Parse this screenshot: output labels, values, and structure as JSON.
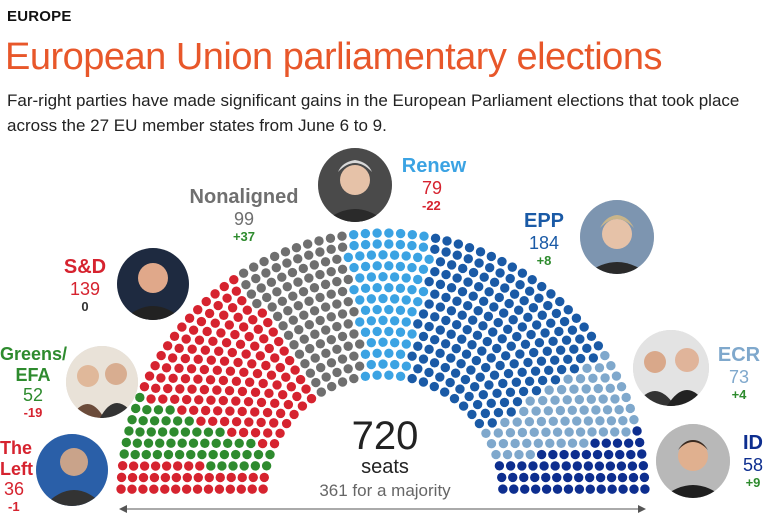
{
  "header": {
    "kicker": "EUROPE",
    "title": "European Union parliamentary elections",
    "subtitle": "Far-right parties have made significant gains in the European Parliament elections that took place across the 27 EU member states from June 6 to 9."
  },
  "center": {
    "total": "720",
    "total_label": "seats",
    "majority": "361 for a majority"
  },
  "parties": [
    {
      "name": "The Left",
      "seats": "36",
      "change": "-1",
      "color": "#d6232f",
      "icon": "person-photo-icon"
    },
    {
      "name": "Greens/ EFA",
      "seats": "52",
      "change": "-19",
      "color": "#2e8b2e",
      "icon": "person-photo-icon"
    },
    {
      "name": "S&D",
      "seats": "139",
      "change": "0",
      "color": "#d6232f",
      "icon": "person-photo-icon"
    },
    {
      "name": "Nonaligned",
      "seats": "99",
      "change": "+37",
      "color": "#6f6f6f",
      "icon": "person-photo-icon"
    },
    {
      "name": "Renew",
      "seats": "79",
      "change": "-22",
      "color": "#3ba3e3",
      "icon": "person-photo-icon"
    },
    {
      "name": "EPP",
      "seats": "184",
      "change": "+8",
      "color": "#1a5aa6",
      "icon": "person-photo-icon"
    },
    {
      "name": "ECR",
      "seats": "73",
      "change": "+4",
      "color": "#7fa8cc",
      "icon": "person-photo-icon"
    },
    {
      "name": "ID",
      "seats": "58",
      "change": "+9",
      "color": "#0d2e8f",
      "icon": "person-photo-icon"
    }
  ],
  "colors": {
    "title": "#e8572a",
    "increase": "#2e8b2e",
    "decrease": "#d6232f",
    "neutral": "#333333"
  },
  "chart_data": {
    "type": "hemicycle",
    "title": "European Union parliamentary elections",
    "total_seats": 720,
    "majority": 361,
    "series": [
      {
        "name": "The Left",
        "seats": 36,
        "change": -1,
        "color": "#d6232f"
      },
      {
        "name": "Greens/EFA",
        "seats": 52,
        "change": -19,
        "color": "#2e8b2e"
      },
      {
        "name": "S&D",
        "seats": 139,
        "change": 0,
        "color": "#d6232f"
      },
      {
        "name": "Nonaligned",
        "seats": 99,
        "change": 37,
        "color": "#6f6f6f"
      },
      {
        "name": "Renew",
        "seats": 79,
        "change": -22,
        "color": "#3ba3e3"
      },
      {
        "name": "EPP",
        "seats": 184,
        "change": 8,
        "color": "#1a5aa6"
      },
      {
        "name": "ECR",
        "seats": 73,
        "change": 4,
        "color": "#7fa8cc"
      },
      {
        "name": "ID",
        "seats": 58,
        "change": 9,
        "color": "#0d2e8f"
      }
    ]
  }
}
